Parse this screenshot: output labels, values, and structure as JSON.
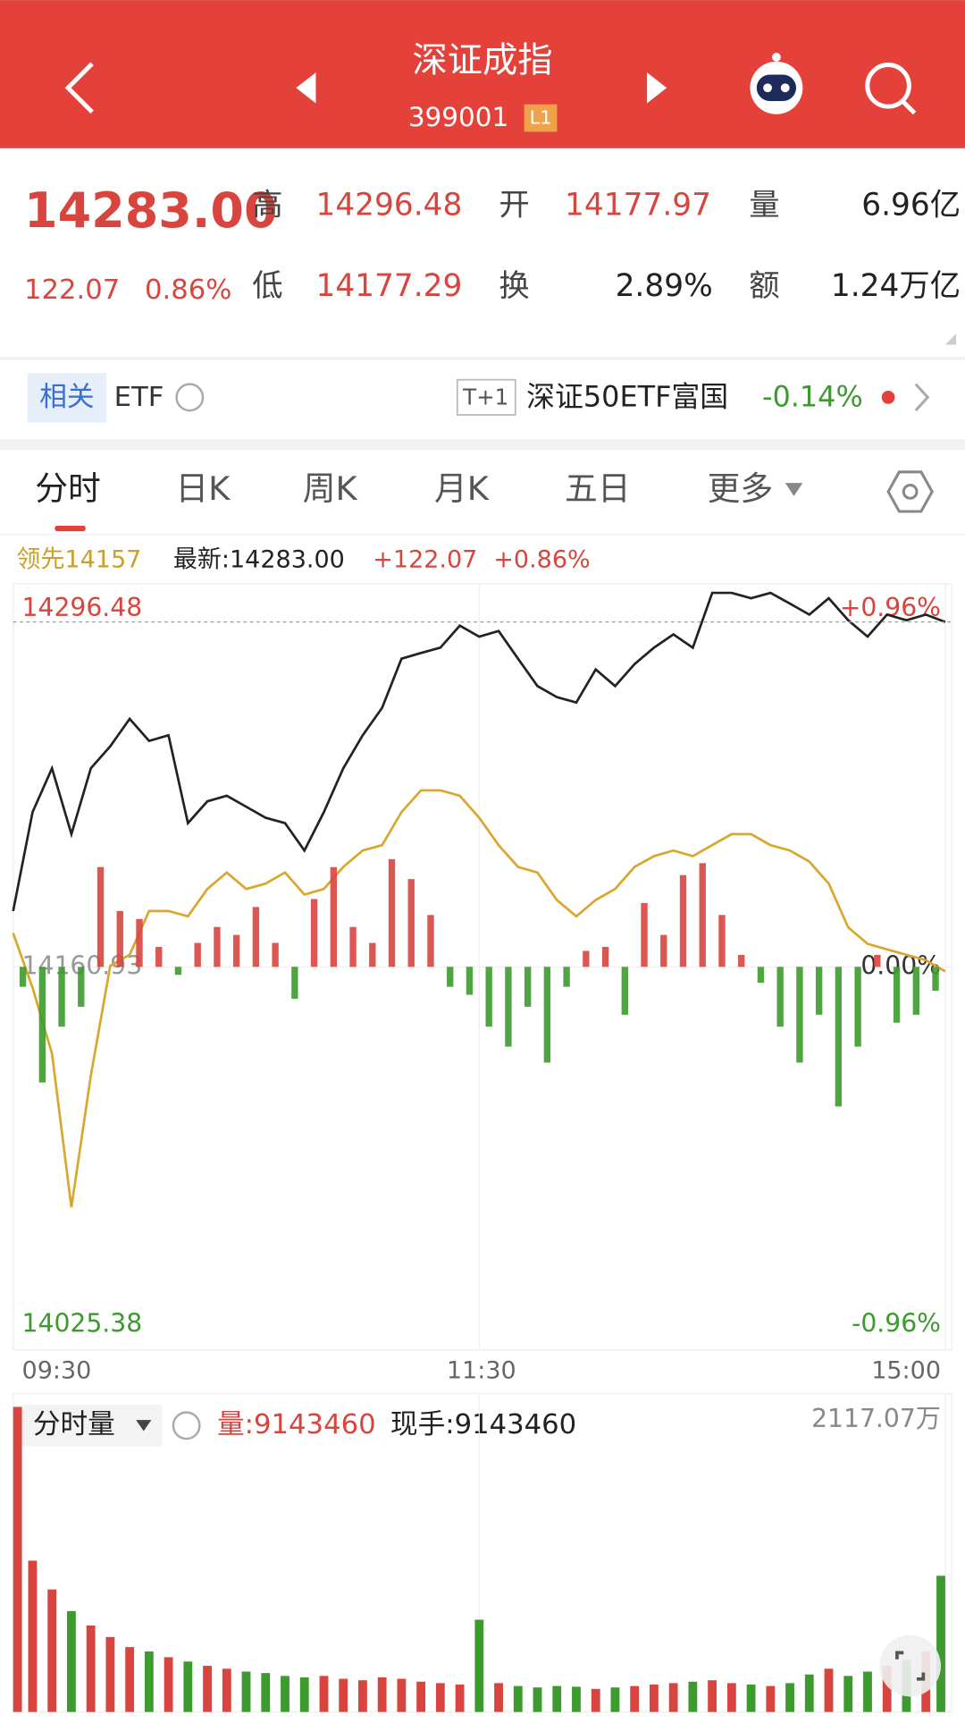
{
  "header": {
    "title": "深证成指",
    "code": "399001",
    "badge": "L1"
  },
  "quote": {
    "price": "14283.00",
    "change": "122.07",
    "pct": "0.86%",
    "fields": [
      {
        "label": "高",
        "value": "14296.48"
      },
      {
        "label": "开",
        "value": "14177.97"
      },
      {
        "label": "量",
        "value": "6.96亿"
      },
      {
        "label": "低",
        "value": "14177.29"
      },
      {
        "label": "换",
        "value": "2.89%"
      },
      {
        "label": "额",
        "value": "1.24万亿"
      }
    ]
  },
  "etf": {
    "tag": "相关",
    "label": "ETF",
    "tplus": "T+1",
    "name": "深证50ETF富国",
    "change": "-0.14%"
  },
  "tabs": [
    "分时",
    "日K",
    "周K",
    "月K",
    "五日",
    "更多"
  ],
  "legend": {
    "lead": "领先14157",
    "latest": "最新:14283.00",
    "change": "+122.07",
    "pct": "+0.86%"
  },
  "chart_data": [
    {
      "type": "line",
      "x": [
        0,
        5,
        10,
        15,
        20,
        25,
        30,
        35,
        40,
        45,
        50,
        55,
        60,
        65,
        70,
        75,
        80,
        85,
        90,
        95,
        100,
        105,
        110,
        115,
        120,
        125,
        130,
        135,
        140,
        145,
        150,
        155,
        160,
        165,
        170,
        175,
        180,
        185,
        190,
        195,
        200,
        205,
        210,
        215,
        220,
        225,
        230,
        235,
        240
      ],
      "xlim": [
        0,
        240
      ],
      "xticks": [
        {
          "value": 0,
          "label": "09:30"
        },
        {
          "value": 120,
          "label": "11:30"
        },
        {
          "value": 240,
          "label": "15:00"
        }
      ],
      "ylim": [
        14025.38,
        14296.48
      ],
      "yticks": [
        14296.48,
        14160.93,
        14025.38
      ],
      "y2lim": [
        -0.96,
        0.96
      ],
      "y2ticks": [
        {
          "value": 0.96,
          "label": "+0.96%"
        },
        {
          "value": 0,
          "label": "0.00%"
        },
        {
          "value": -0.96,
          "label": "-0.96%"
        }
      ],
      "grid": true,
      "up_color": "#d8453e",
      "down_color": "#3d9a2e",
      "series": [
        {
          "color": "#222222",
          "values": [
            14180.7,
            14215.7,
            14231.2,
            14207.9,
            14231.2,
            14239.0,
            14248.7,
            14240.9,
            14242.9,
            14211.8,
            14219.5,
            14221.5,
            14217.6,
            14213.7,
            14211.8,
            14202.1,
            14215.7,
            14231.2,
            14242.9,
            14252.6,
            14270.0,
            14272.0,
            14273.9,
            14281.7,
            14277.8,
            14279.8,
            14270.0,
            14260.3,
            14256.4,
            14254.5,
            14266.2,
            14260.3,
            14268.1,
            14273.9,
            14278.6,
            14273.9,
            14293.3,
            14293.3,
            14291.4,
            14293.3,
            14289.5,
            14285.6,
            14291.4,
            14283.6,
            14277.8,
            14285.6,
            14283.6,
            14285.6,
            14283.0
          ]
        },
        {
          "color": "#d9a62e",
          "values": [
            14172.9,
            14153.5,
            14130.2,
            14075.8,
            14122.4,
            14161.3,
            14165.2,
            14180.7,
            14180.7,
            14178.8,
            14188.5,
            14194.3,
            14188.5,
            14190.4,
            14194.3,
            14186.5,
            14188.5,
            14196.3,
            14202.1,
            14204.0,
            14215.7,
            14223.4,
            14223.4,
            14221.5,
            14213.7,
            14204.0,
            14196.3,
            14194.3,
            14184.6,
            14178.8,
            14184.6,
            14188.5,
            14196.3,
            14200.1,
            14202.1,
            14200.1,
            14204.0,
            14207.9,
            14207.9,
            14204.0,
            14202.1,
            14198.2,
            14190.4,
            14174.9,
            14169.1,
            14167.1,
            14165.2,
            14163.3,
            14159.3
          ]
        },
        {
          "type": "bar",
          "axis": "y2",
          "x": [
            2.5,
            7.5,
            12.5,
            17.5,
            22.5,
            27.5,
            32.5,
            37.5,
            42.5,
            47.5,
            52.5,
            57.5,
            62.5,
            67.5,
            72.5,
            77.5,
            82.5,
            87.5,
            92.5,
            97.5,
            102.5,
            107.5,
            112.5,
            117.5,
            122.5,
            127.5,
            132.5,
            137.5,
            142.5,
            147.5,
            152.5,
            157.5,
            162.5,
            167.5,
            172.5,
            177.5,
            182.5,
            187.5,
            192.5,
            197.5,
            202.5,
            207.5,
            212.5,
            217.5,
            222.5,
            227.5,
            232.5,
            237.5
          ],
          "values": [
            -0.05,
            -0.29,
            -0.15,
            -0.1,
            0.25,
            0.14,
            0.12,
            0.05,
            -0.02,
            0.06,
            0.1,
            0.08,
            0.15,
            0.06,
            -0.08,
            0.17,
            0.25,
            0.1,
            0.06,
            0.27,
            0.22,
            0.13,
            -0.05,
            -0.07,
            -0.15,
            -0.2,
            -0.1,
            -0.24,
            -0.05,
            0.04,
            0.05,
            -0.12,
            0.16,
            0.08,
            0.23,
            0.26,
            0.13,
            0.03,
            -0.04,
            -0.15,
            -0.24,
            -0.12,
            -0.35,
            -0.2,
            0.03,
            -0.14,
            -0.12,
            -0.06
          ]
        }
      ]
    },
    {
      "type": "bar",
      "title": "分时量",
      "volume": "量:9143460",
      "hand": "现手:9143460",
      "x": [
        0,
        5,
        10,
        15,
        20,
        25,
        30,
        35,
        40,
        45,
        50,
        55,
        60,
        65,
        70,
        75,
        80,
        85,
        90,
        95,
        100,
        105,
        110,
        115,
        120,
        125,
        130,
        135,
        140,
        145,
        150,
        155,
        160,
        165,
        170,
        175,
        180,
        185,
        190,
        195,
        200,
        205,
        210,
        215,
        220,
        225,
        230,
        235,
        240
      ],
      "xlim": [
        0,
        240
      ],
      "values": [
        2117.07,
        1050,
        850,
        700,
        600,
        520,
        450,
        420,
        380,
        350,
        320,
        300,
        280,
        270,
        250,
        240,
        250,
        230,
        220,
        240,
        230,
        210,
        200,
        190,
        640,
        200,
        180,
        170,
        180,
        175,
        160,
        170,
        180,
        190,
        200,
        210,
        220,
        200,
        190,
        180,
        200,
        260,
        300,
        250,
        280,
        320,
        360,
        420,
        945
      ],
      "ylim": [
        0,
        2117.07
      ],
      "yticks": [
        {
          "value": 2117.07,
          "label": "2117.07万"
        }
      ]
    }
  ]
}
